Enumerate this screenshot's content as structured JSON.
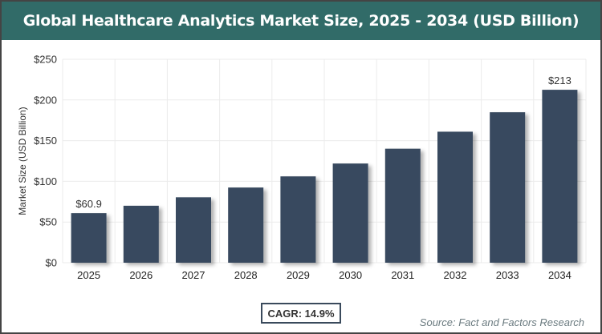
{
  "chart_data": {
    "type": "bar",
    "title": "Global Healthcare Analytics Market Size, 2025 - 2034 (USD Billion)",
    "xlabel": "",
    "ylabel": "Market Size (USD Billion)",
    "categories": [
      "2025",
      "2026",
      "2027",
      "2028",
      "2029",
      "2030",
      "2031",
      "2032",
      "2033",
      "2034"
    ],
    "values": [
      60.9,
      70.0,
      80.4,
      92.4,
      106.1,
      121.9,
      140.1,
      161.0,
      184.9,
      212.5
    ],
    "data_labels": {
      "0": "$60.9",
      "9": "$213"
    },
    "ylim": [
      0,
      250
    ],
    "yticks": [
      0,
      50,
      100,
      150,
      200,
      250
    ],
    "ytick_labels": [
      "$0",
      "$50",
      "$100",
      "$150",
      "$200",
      "$250"
    ],
    "grid": true,
    "bar_color": "#374a5e",
    "title_bg_color": "#316b68"
  },
  "annotations": {
    "cagr": "CAGR: 14.9%",
    "source": "Source: Fact and Factors Research"
  }
}
